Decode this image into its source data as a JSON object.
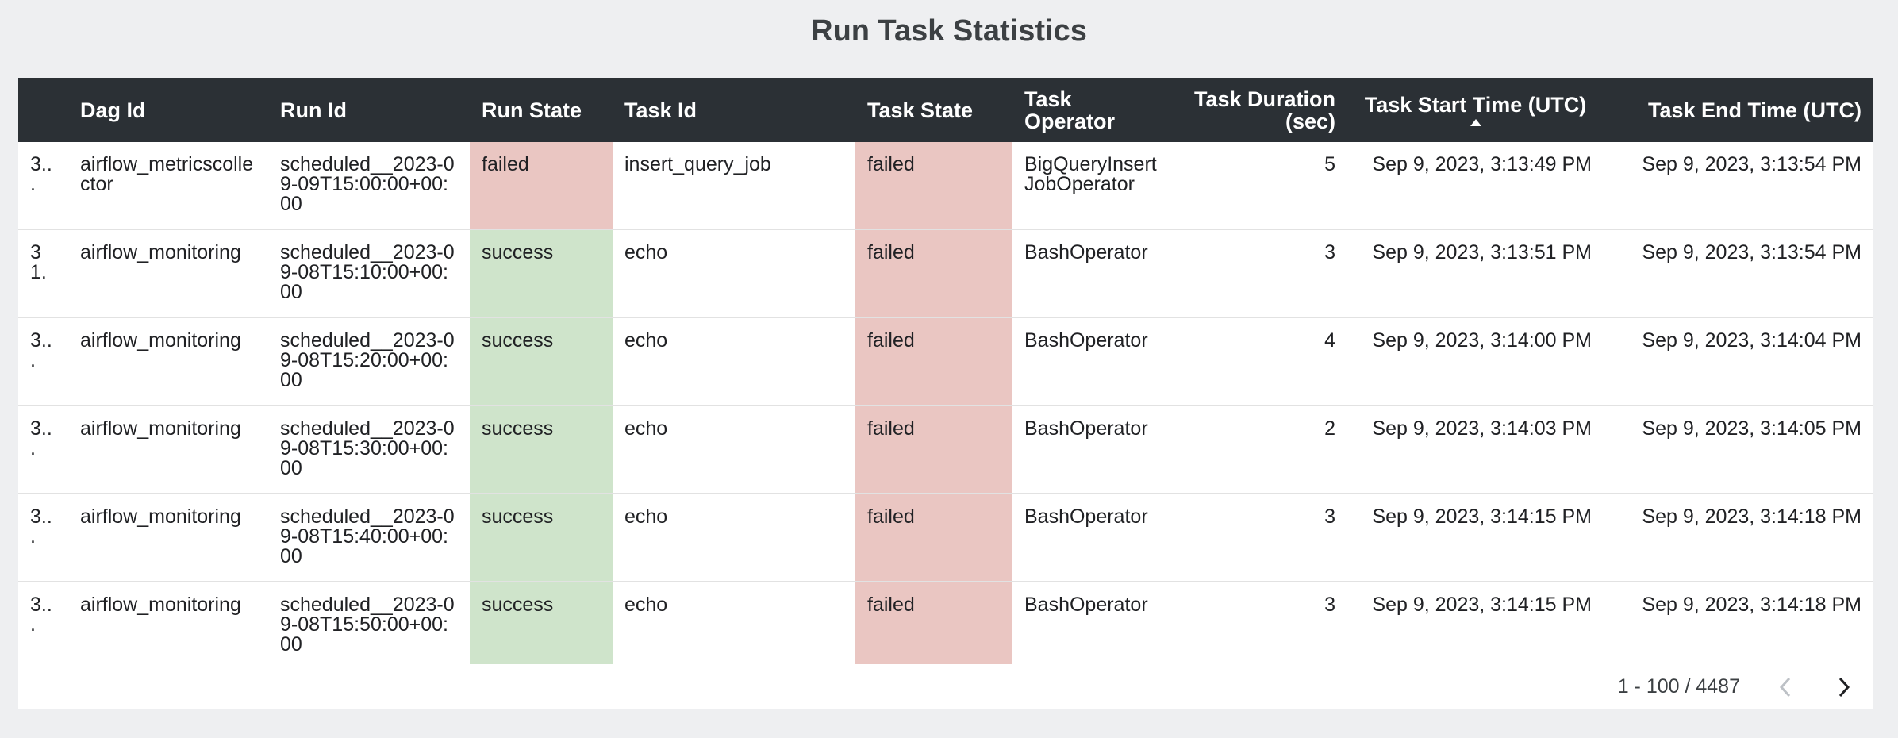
{
  "header": {
    "title": "Run Task Statistics"
  },
  "table": {
    "columns": [
      "",
      "Dag Id",
      "Run Id",
      "Run State",
      "Task Id",
      "Task State",
      "Task Operator",
      "Task Duration (sec)",
      "Task Start Time (UTC)",
      "Task End Time (UTC)"
    ],
    "rows": [
      [
        "3...",
        "airflow_metricscollector",
        "scheduled__2023-09-09T15:00:00+00:00",
        "failed",
        "insert_query_job",
        "failed",
        "BigQueryInsertJobOperator",
        "5",
        "Sep 9, 2023, 3:13:49 PM",
        "Sep 9, 2023, 3:13:54 PM"
      ],
      [
        "31.",
        "airflow_monitoring",
        "scheduled__2023-09-08T15:10:00+00:00",
        "success",
        "echo",
        "failed",
        "BashOperator",
        "3",
        "Sep 9, 2023, 3:13:51 PM",
        "Sep 9, 2023, 3:13:54 PM"
      ],
      [
        "3...",
        "airflow_monitoring",
        "scheduled__2023-09-08T15:20:00+00:00",
        "success",
        "echo",
        "failed",
        "BashOperator",
        "4",
        "Sep 9, 2023, 3:14:00 PM",
        "Sep 9, 2023, 3:14:04 PM"
      ],
      [
        "3...",
        "airflow_monitoring",
        "scheduled__2023-09-08T15:30:00+00:00",
        "success",
        "echo",
        "failed",
        "BashOperator",
        "2",
        "Sep 9, 2023, 3:14:03 PM",
        "Sep 9, 2023, 3:14:05 PM"
      ],
      [
        "3...",
        "airflow_monitoring",
        "scheduled__2023-09-08T15:40:00+00:00",
        "success",
        "echo",
        "failed",
        "BashOperator",
        "3",
        "Sep 9, 2023, 3:14:15 PM",
        "Sep 9, 2023, 3:14:18 PM"
      ],
      [
        "3...",
        "airflow_monitoring",
        "scheduled__2023-09-08T15:50:00+00:00",
        "success",
        "echo",
        "failed",
        "BashOperator",
        "3",
        "Sep 9, 2023, 3:14:15 PM",
        "Sep 9, 2023, 3:14:18 PM"
      ]
    ]
  },
  "pagination": {
    "range": "1 - 100 / 4487"
  }
}
